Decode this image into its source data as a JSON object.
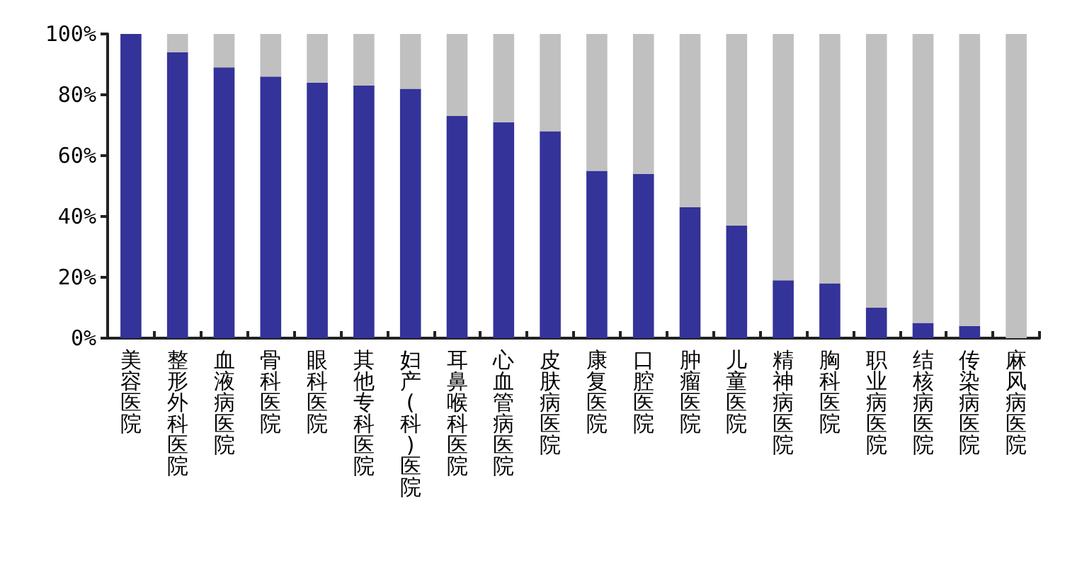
{
  "chart_data": {
    "type": "bar",
    "stacked": true,
    "categories": [
      "美容医院",
      "整形外科医院",
      "血液病医院",
      "骨科医院",
      "眼科医院",
      "其他专科医院",
      "妇产(科)医院",
      "耳鼻喉科医院",
      "心血管病医院",
      "皮肤病医院",
      "康复医院",
      "口腔医院",
      "肿瘤医院",
      "儿童医院",
      "精神病医院",
      "胸科医院",
      "职业病医院",
      "结核病医院",
      "传染病医院",
      "麻风病医院"
    ],
    "series": [
      {
        "color": "#333399",
        "values": [
          100,
          94,
          89,
          86,
          84,
          83,
          82,
          73,
          71,
          68,
          55,
          54,
          43,
          37,
          19,
          18,
          10,
          5,
          4,
          0
        ]
      },
      {
        "color": "#c0c0c0",
        "values": [
          0,
          6,
          11,
          14,
          16,
          17,
          18,
          27,
          29,
          32,
          45,
          46,
          57,
          63,
          81,
          82,
          90,
          95,
          96,
          100
        ]
      }
    ],
    "ylim": [
      0,
      100
    ],
    "yticks": [
      {
        "value": 0,
        "label": "0%"
      },
      {
        "value": 20,
        "label": "20%"
      },
      {
        "value": 40,
        "label": "40%"
      },
      {
        "value": 60,
        "label": "60%"
      },
      {
        "value": 80,
        "label": "80%"
      },
      {
        "value": 100,
        "label": "100%"
      }
    ],
    "grid": false
  }
}
